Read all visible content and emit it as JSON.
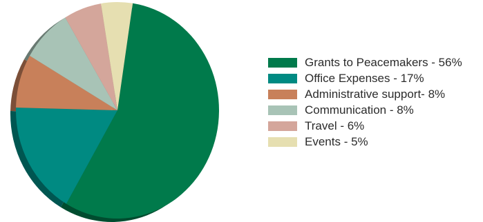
{
  "chart_data": {
    "type": "pie",
    "title": "",
    "legend_position": "right",
    "slices": [
      {
        "label": "Grants to Peacemakers - 56%",
        "value": 56,
        "color": "#007A4B"
      },
      {
        "label": "Office Expenses - 17%",
        "value": 17,
        "color": "#008A82"
      },
      {
        "label": "Administrative support- 8%",
        "value": 8,
        "color": "#C8805A"
      },
      {
        "label": "Communication - 8%",
        "value": 8,
        "color": "#A8C3B6"
      },
      {
        "label": "Travel - 6%",
        "value": 6,
        "color": "#D4A69B"
      },
      {
        "label": "Events - 5%",
        "value": 5,
        "color": "#E6DFB1"
      }
    ]
  }
}
